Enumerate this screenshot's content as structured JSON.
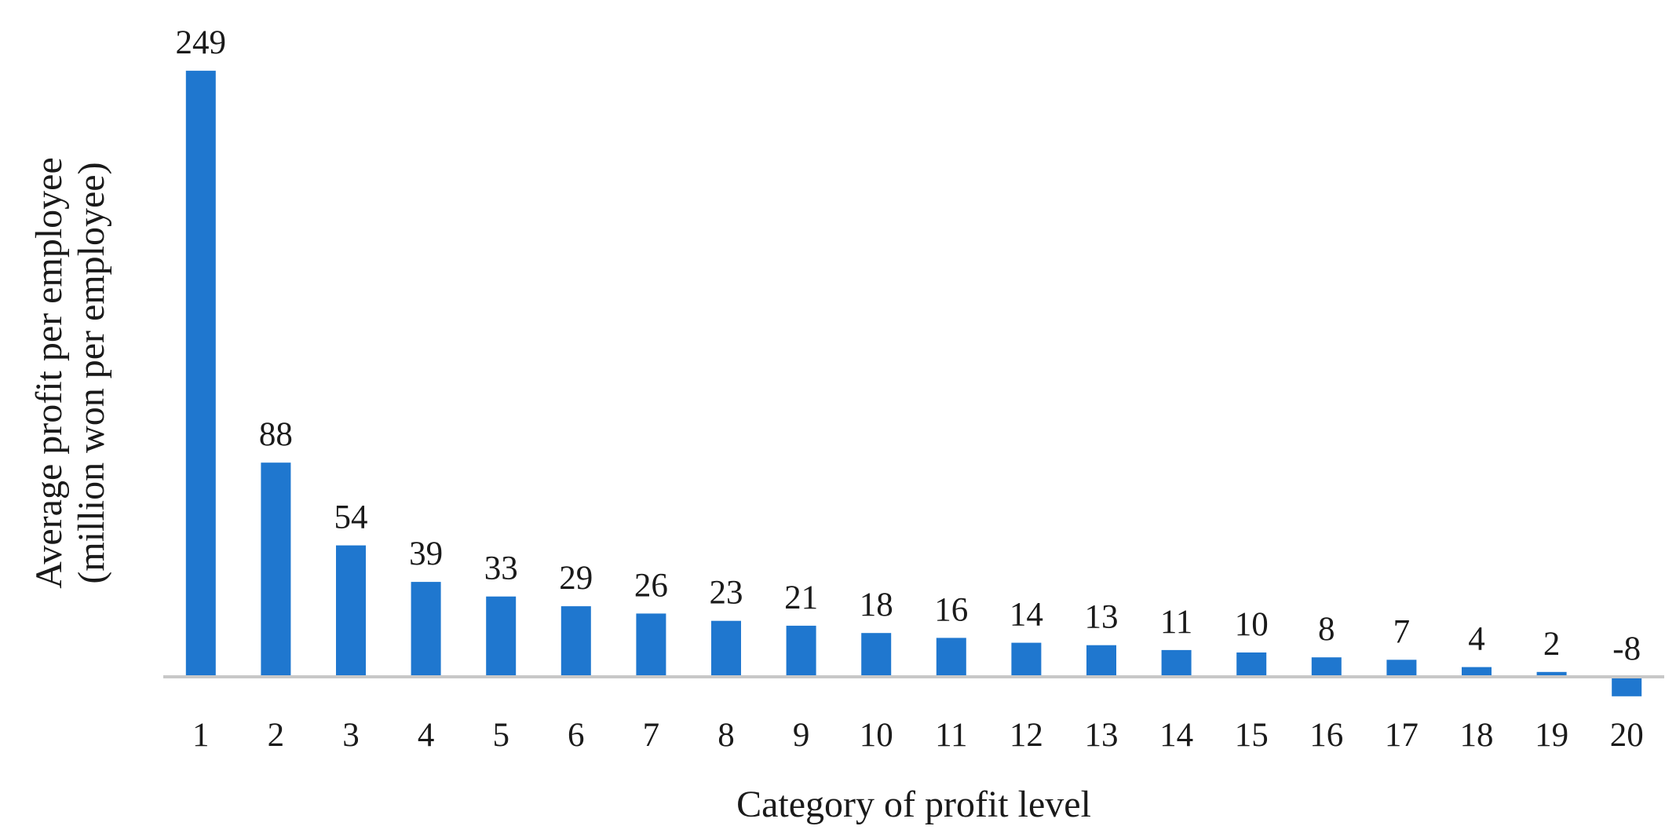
{
  "chart_data": {
    "type": "bar",
    "title": "",
    "xlabel": "Category of profit level",
    "ylabel": "Average profit per employee",
    "ylabel_sub": "(million won per employee)",
    "categories": [
      "1",
      "2",
      "3",
      "4",
      "5",
      "6",
      "7",
      "8",
      "9",
      "10",
      "11",
      "12",
      "13",
      "14",
      "15",
      "16",
      "17",
      "18",
      "19",
      "20"
    ],
    "values": [
      249,
      88,
      54,
      39,
      33,
      29,
      26,
      23,
      21,
      18,
      16,
      14,
      13,
      11,
      10,
      8,
      7,
      4,
      2,
      -8
    ],
    "data_labels": [
      "249",
      "88",
      "54",
      "39",
      "33",
      "29",
      "26",
      "23",
      "21",
      "18",
      "16",
      "14",
      "13",
      "11",
      "10",
      "8",
      "7",
      "4",
      "2",
      "-8"
    ],
    "ylim": [
      -8,
      249
    ],
    "grid": false,
    "legend": "none",
    "bar_color": "#1f77cf",
    "axis_color": "#c8c8c8"
  }
}
